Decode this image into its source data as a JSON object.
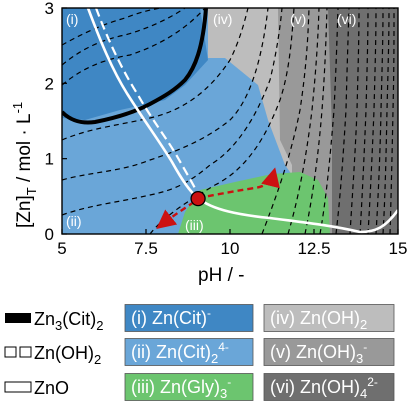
{
  "chart_data": {
    "type": "area",
    "title": "",
    "xlabel": "pH  /  -",
    "ylabel": "[Zn]",
    "ylabel_sub": "T",
    "ylabel_unit": "  /  mol · L",
    "ylabel_exp": "-1",
    "xlim": [
      5,
      15
    ],
    "ylim": [
      0,
      3
    ],
    "xticks": [
      "5",
      "7.5",
      "10",
      "12.5",
      "15"
    ],
    "yticks": [
      "0",
      "1",
      "2",
      "3"
    ],
    "region_markers": [
      "(i)",
      "(ii)",
      "(iii)",
      "(iv)",
      "(v)",
      "(vi)"
    ],
    "species_legend": [
      {
        "marker": "(i)",
        "species": "Zn(Cit)",
        "sup": "-",
        "sub": "",
        "sup2": "",
        "color": "#3f87c4",
        "text_color": "#ffffff"
      },
      {
        "marker": "(ii)",
        "species": "Zn(Cit)",
        "sub": "2",
        "sup": "",
        "sup2": "4-",
        "color": "#6aa6d8",
        "text_color": "#ffffff"
      },
      {
        "marker": "(iii)",
        "species": "Zn(Gly)",
        "sub": "3",
        "sup": "",
        "sup2": "-",
        "color": "#6cc56f",
        "text_color": "#ffffff"
      },
      {
        "marker": "(iv)",
        "species": "Zn(OH)",
        "sub": "2",
        "sup": "",
        "sup2": "",
        "color": "#bdbdbd",
        "text_color": "#ffffff"
      },
      {
        "marker": "(v)",
        "species": "Zn(OH)",
        "sub": "3",
        "sup": "",
        "sup2": "-",
        "color": "#999999",
        "text_color": "#ffffff"
      },
      {
        "marker": "(vi)",
        "species": "Zn(OH)",
        "sub": "4",
        "sup": "",
        "sup2": "2-",
        "color": "#6f6f6f",
        "text_color": "#ffffff"
      }
    ],
    "phase_legend": [
      {
        "label": "Zn",
        "sub": "3",
        "label2": "(Cit)",
        "sub2": "2",
        "style": "thick-black"
      },
      {
        "label": "Zn(OH)",
        "sub": "2",
        "label2": "",
        "sub2": "",
        "style": "white-dashed"
      },
      {
        "label": "ZnO",
        "sub": "",
        "label2": "",
        "sub2": "",
        "style": "white-solid"
      }
    ],
    "operating_point": {
      "x": 9.05,
      "y": 0.47
    },
    "trajectory_endpoints": [
      {
        "x": 11.4,
        "y": 0.95
      },
      {
        "x": 7.5,
        "y": 0.05
      }
    ]
  }
}
